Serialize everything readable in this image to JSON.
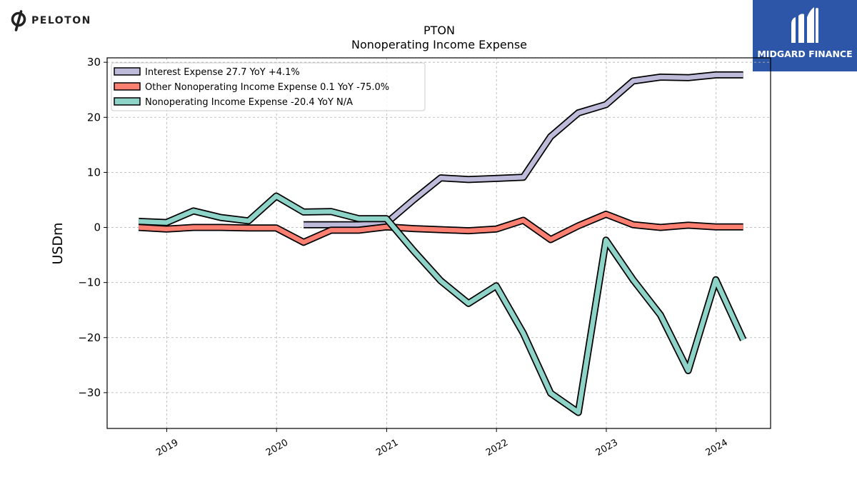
{
  "logos": {
    "left_brand": "PELOTON",
    "right_brand": "MIDGARD FINANCE"
  },
  "chart_data": {
    "type": "line",
    "title": "PTON",
    "subtitle": "Nonoperating Income Expense",
    "xlabel": "",
    "ylabel": "USDm",
    "ylim": [
      -36.5,
      30.8
    ],
    "yticks": [
      -30,
      -20,
      -10,
      0,
      10,
      20,
      30
    ],
    "ytick_labels": [
      "−30",
      "−20",
      "−10",
      "0",
      "10",
      "20",
      "30"
    ],
    "xlim": [
      "2018-06-17",
      "2024-06-30"
    ],
    "xticks": [
      "2019-01-01",
      "2020-01-01",
      "2021-01-01",
      "2022-01-01",
      "2023-01-01",
      "2024-01-01"
    ],
    "xtick_labels": [
      "2019",
      "2020",
      "2021",
      "2022",
      "2023",
      "2024"
    ],
    "grid": true,
    "legend_position": "top-left",
    "series": [
      {
        "name": "Interest Expense  27.7 YoY +4.1%",
        "color": "#bebada",
        "x": [
          "2020-03-31",
          "2020-06-30",
          "2020-09-30",
          "2020-12-31",
          "2021-03-31",
          "2021-06-30",
          "2021-09-30",
          "2021-12-31",
          "2022-03-31",
          "2022-06-30",
          "2022-09-30",
          "2022-12-31",
          "2023-03-31",
          "2023-06-30",
          "2023-09-30",
          "2023-12-31",
          "2024-03-31"
        ],
        "values": [
          0.5,
          0.5,
          0.5,
          0.8,
          5.0,
          9.0,
          8.7,
          8.9,
          9.1,
          16.5,
          20.8,
          22.3,
          26.6,
          27.3,
          27.2,
          27.7,
          27.7
        ]
      },
      {
        "name": "Other Nonoperating Income Expense  0.1 YoY -75.0%",
        "color": "#fb8072",
        "x": [
          "2018-09-30",
          "2018-12-31",
          "2019-03-31",
          "2019-06-30",
          "2019-09-30",
          "2019-12-31",
          "2020-03-31",
          "2020-06-30",
          "2020-09-30",
          "2020-12-31",
          "2021-03-31",
          "2021-06-30",
          "2021-09-30",
          "2021-12-31",
          "2022-03-31",
          "2022-06-30",
          "2022-09-30",
          "2022-12-31",
          "2023-03-31",
          "2023-06-30",
          "2023-09-30",
          "2023-12-31",
          "2024-03-31"
        ],
        "values": [
          0.0,
          -0.3,
          0.0,
          0.0,
          -0.1,
          -0.1,
          -2.7,
          -0.5,
          -0.5,
          0.1,
          -0.2,
          -0.4,
          -0.6,
          -0.3,
          1.3,
          -2.2,
          0.3,
          2.4,
          0.5,
          0.0,
          0.4,
          0.1,
          0.1
        ]
      },
      {
        "name": "Nonoperating Income Expense  -20.4 YoY N/A",
        "color": "#8dd3c7",
        "x": [
          "2018-09-30",
          "2018-12-31",
          "2019-03-31",
          "2019-06-30",
          "2019-09-30",
          "2019-12-31",
          "2020-03-31",
          "2020-06-30",
          "2020-09-30",
          "2020-12-31",
          "2021-03-31",
          "2021-06-30",
          "2021-09-30",
          "2021-12-31",
          "2022-03-31",
          "2022-06-30",
          "2022-09-30",
          "2022-12-31",
          "2023-03-31",
          "2023-06-30",
          "2023-09-30",
          "2023-12-31",
          "2024-03-31"
        ],
        "values": [
          1.1,
          0.9,
          3.0,
          1.8,
          1.2,
          5.7,
          2.8,
          2.9,
          1.6,
          1.6,
          -4.2,
          -9.7,
          -13.8,
          -10.6,
          -19.2,
          -30.1,
          -33.6,
          -2.3,
          -9.5,
          -15.9,
          -26.0,
          -9.5,
          -20.4
        ]
      }
    ]
  }
}
